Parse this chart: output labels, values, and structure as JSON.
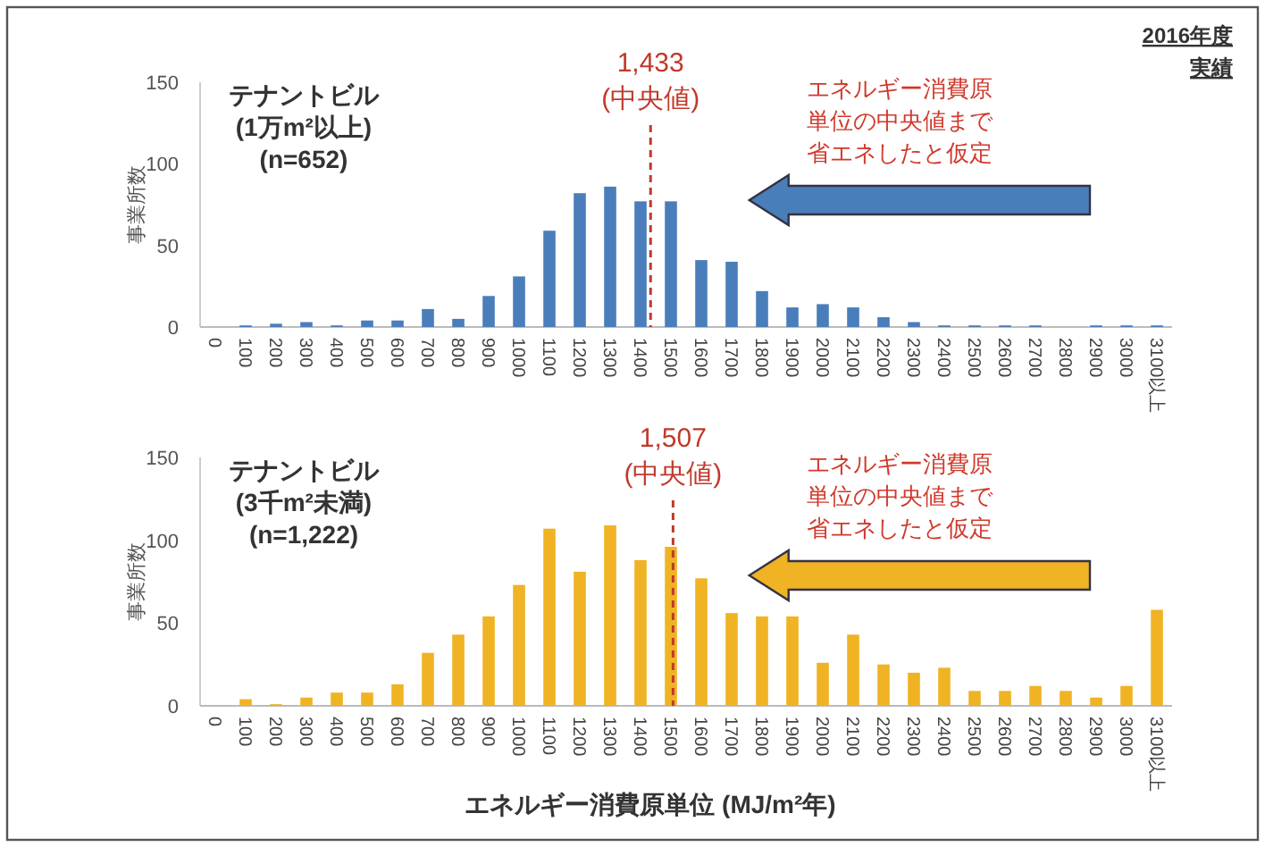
{
  "chart_data": [
    {
      "type": "bar",
      "title": "テナントビル\n(1万m²以上)\n(n=652)",
      "ylabel": "事業所数",
      "x": [
        0,
        100,
        200,
        300,
        400,
        500,
        600,
        700,
        800,
        900,
        1000,
        1100,
        1200,
        1300,
        1400,
        1500,
        1600,
        1700,
        1800,
        1900,
        2000,
        2100,
        2200,
        2300,
        2400,
        2500,
        2600,
        2700,
        2800,
        2900,
        3000,
        3100
      ],
      "values": [
        0,
        1,
        2,
        3,
        1,
        4,
        4,
        11,
        5,
        19,
        31,
        59,
        82,
        86,
        77,
        77,
        41,
        40,
        22,
        12,
        14,
        12,
        6,
        3,
        1,
        1,
        1,
        1,
        0,
        1,
        1,
        1
      ],
      "xlim": [
        -50,
        3150
      ],
      "xticks": [
        0,
        100,
        200,
        300,
        400,
        500,
        600,
        700,
        800,
        900,
        1000,
        1100,
        1200,
        1300,
        1400,
        1500,
        1600,
        1700,
        1800,
        1900,
        2000,
        2100,
        2200,
        2300,
        2400,
        2500,
        2600,
        2700,
        2800,
        2900,
        3000,
        {
          "value": 3100,
          "label": "3100以上"
        }
      ],
      "color": "#4a7ebb",
      "ylim": [
        0,
        150
      ],
      "yticks": [
        0,
        50,
        100,
        150
      ],
      "ref_lines": [
        {
          "axis": "x",
          "value": 1433,
          "label": "1,433\n(中央値)",
          "color": "#c0392b",
          "line_style": "dashed"
        }
      ],
      "annotations": [
        "エネルギー消費原単位の中央値まで省エネしたと仮定",
        "2016年度実績"
      ]
    },
    {
      "type": "bar",
      "title": "テナントビル\n(3千m²未満)\n(n=1,222)",
      "ylabel": "事業所数",
      "xlabel": "エネルギー消費原単位 (MJ/m²年)",
      "x": [
        0,
        100,
        200,
        300,
        400,
        500,
        600,
        700,
        800,
        900,
        1000,
        1100,
        1200,
        1300,
        1400,
        1500,
        1600,
        1700,
        1800,
        1900,
        2000,
        2100,
        2200,
        2300,
        2400,
        2500,
        2600,
        2700,
        2800,
        2900,
        3000,
        3100
      ],
      "values": [
        0,
        4,
        1,
        5,
        8,
        8,
        13,
        32,
        43,
        54,
        73,
        107,
        81,
        109,
        88,
        96,
        77,
        56,
        54,
        54,
        26,
        43,
        25,
        20,
        23,
        9,
        9,
        12,
        9,
        5,
        12,
        58
      ],
      "xlim": [
        -50,
        3150
      ],
      "xticks": [
        0,
        100,
        200,
        300,
        400,
        500,
        600,
        700,
        800,
        900,
        1000,
        1100,
        1200,
        1300,
        1400,
        1500,
        1600,
        1700,
        1800,
        1900,
        2000,
        2100,
        2200,
        2300,
        2400,
        2500,
        2600,
        2700,
        2800,
        2900,
        3000,
        {
          "value": 3100,
          "label": "3100以上"
        }
      ],
      "color": "#f0b323",
      "ylim": [
        0,
        150
      ],
      "yticks": [
        0,
        50,
        100,
        150
      ],
      "ref_lines": [
        {
          "axis": "x",
          "value": 1507,
          "label": "1,507\n(中央値)",
          "color": "#c0392b",
          "line_style": "dashed"
        }
      ],
      "annotations": [
        "エネルギー消費原単位の中央値まで省エネしたと仮定"
      ]
    }
  ]
}
